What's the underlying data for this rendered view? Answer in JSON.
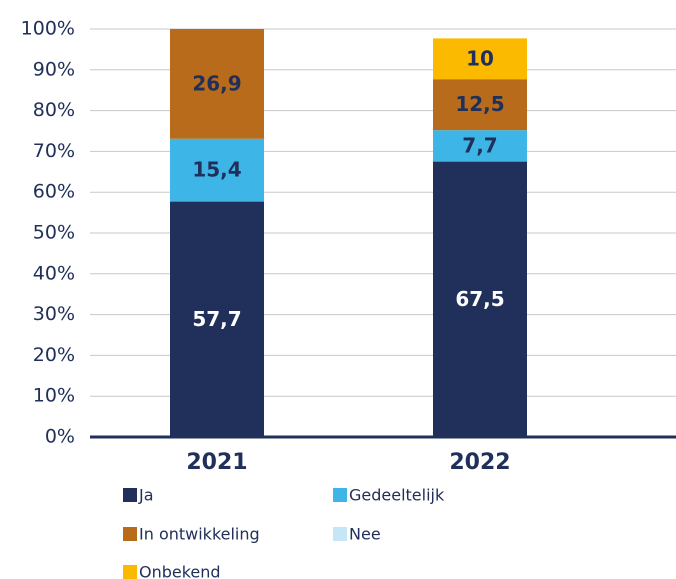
{
  "chart_data": {
    "type": "stacked_bar",
    "categories": [
      "2021",
      "2022"
    ],
    "series": [
      {
        "name": "Ja",
        "color": "#21305a",
        "values": [
          57.7,
          67.5
        ],
        "value_labels": [
          "57,7",
          "67,5"
        ]
      },
      {
        "name": "Gedeeltelijk",
        "color": "#3db5e6",
        "values": [
          15.4,
          7.7
        ],
        "value_labels": [
          "15,4",
          "7,7"
        ]
      },
      {
        "name": "In ontwikkeling",
        "color": "#b86b1a",
        "values": [
          26.9,
          12.5
        ],
        "value_labels": [
          "26,9",
          "12,5"
        ]
      },
      {
        "name": "Nee",
        "color": "#c5e6f7",
        "values": [
          0,
          0
        ],
        "value_labels": [
          null,
          null
        ]
      },
      {
        "name": "Onbekend",
        "color": "#fbb900",
        "values": [
          0,
          10
        ],
        "value_labels": [
          null,
          "10"
        ]
      }
    ],
    "ylim": [
      0,
      100
    ],
    "yticks": [
      {
        "value": 0,
        "label": "0%"
      },
      {
        "value": 10,
        "label": "10%"
      },
      {
        "value": 20,
        "label": "20%"
      },
      {
        "value": 30,
        "label": "30%"
      },
      {
        "value": 40,
        "label": "40%"
      },
      {
        "value": 50,
        "label": "50%"
      },
      {
        "value": 60,
        "label": "60%"
      },
      {
        "value": 70,
        "label": "70%"
      },
      {
        "value": 80,
        "label": "80%"
      },
      {
        "value": 90,
        "label": "90%"
      },
      {
        "value": 100,
        "label": "100%"
      }
    ],
    "grid": true
  }
}
